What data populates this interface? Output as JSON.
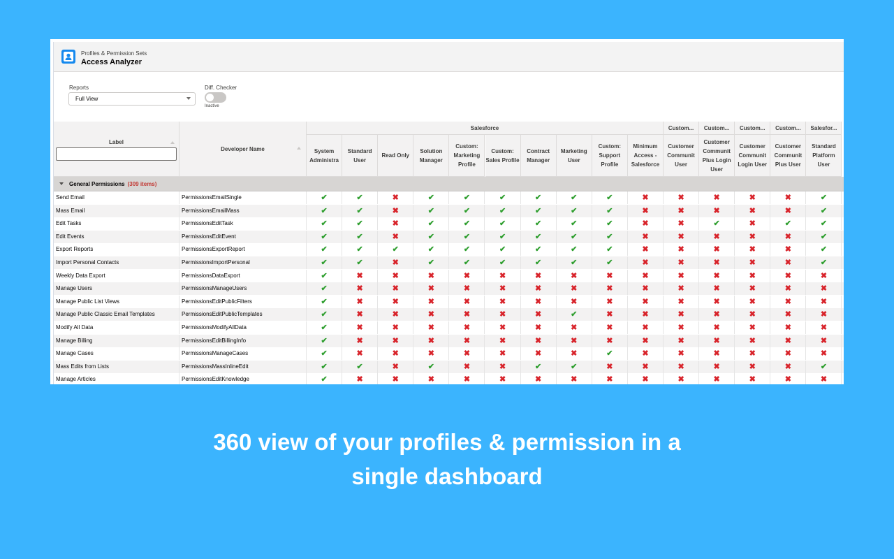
{
  "header": {
    "subtitle": "Profiles & Permission Sets",
    "title": "Access Analyzer"
  },
  "controls": {
    "reports_label": "Reports",
    "reports_value": "Full View",
    "diff_label": "Diff. Checker",
    "diff_state": "Inactive"
  },
  "table": {
    "label_header": "Label",
    "dev_header": "Developer Name",
    "groups": [
      "Salesforce",
      "Custom...",
      "Custom...",
      "Custom...",
      "Custom...",
      "Salesfor..."
    ],
    "columns": [
      "System Administra",
      "Standard User",
      "Read Only",
      "Solution Manager",
      "Custom: Marketing Profile",
      "Custom: Sales Profile",
      "Contract Manager",
      "Marketing User",
      "Custom: Support Profile",
      "Minimum Access - Salesforce",
      "Customer Communit User",
      "Customer Communit Plus Login User",
      "Customer Communit Login User",
      "Customer Communit Plus User",
      "Standard Platform User"
    ],
    "section": {
      "name": "General Permissions",
      "count": "(309 items)"
    },
    "rows": [
      {
        "label": "Send Email",
        "dev": "PermissionsEmailSingle",
        "vals": [
          1,
          1,
          0,
          1,
          1,
          1,
          1,
          1,
          1,
          0,
          0,
          0,
          0,
          0,
          1
        ]
      },
      {
        "label": "Mass Email",
        "dev": "PermissionsEmailMass",
        "vals": [
          1,
          1,
          0,
          1,
          1,
          1,
          1,
          1,
          1,
          0,
          0,
          0,
          0,
          0,
          1
        ]
      },
      {
        "label": "Edit Tasks",
        "dev": "PermissionsEditTask",
        "vals": [
          1,
          1,
          0,
          1,
          1,
          1,
          1,
          1,
          1,
          0,
          0,
          1,
          0,
          1,
          1
        ]
      },
      {
        "label": "Edit Events",
        "dev": "PermissionsEditEvent",
        "vals": [
          1,
          1,
          0,
          1,
          1,
          1,
          1,
          1,
          1,
          0,
          0,
          0,
          0,
          0,
          1
        ]
      },
      {
        "label": "Export Reports",
        "dev": "PermissionsExportReport",
        "vals": [
          1,
          1,
          1,
          1,
          1,
          1,
          1,
          1,
          1,
          0,
          0,
          0,
          0,
          0,
          1
        ]
      },
      {
        "label": "Import Personal Contacts",
        "dev": "PermissionsImportPersonal",
        "vals": [
          1,
          1,
          0,
          1,
          1,
          1,
          1,
          1,
          1,
          0,
          0,
          0,
          0,
          0,
          1
        ]
      },
      {
        "label": "Weekly Data Export",
        "dev": "PermissionsDataExport",
        "vals": [
          1,
          0,
          0,
          0,
          0,
          0,
          0,
          0,
          0,
          0,
          0,
          0,
          0,
          0,
          0
        ]
      },
      {
        "label": "Manage Users",
        "dev": "PermissionsManageUsers",
        "vals": [
          1,
          0,
          0,
          0,
          0,
          0,
          0,
          0,
          0,
          0,
          0,
          0,
          0,
          0,
          0
        ]
      },
      {
        "label": "Manage Public List Views",
        "dev": "PermissionsEditPublicFilters",
        "vals": [
          1,
          0,
          0,
          0,
          0,
          0,
          0,
          0,
          0,
          0,
          0,
          0,
          0,
          0,
          0
        ]
      },
      {
        "label": "Manage Public Classic Email Templates",
        "dev": "PermissionsEditPublicTemplates",
        "vals": [
          1,
          0,
          0,
          0,
          0,
          0,
          0,
          1,
          0,
          0,
          0,
          0,
          0,
          0,
          0
        ]
      },
      {
        "label": "Modify All Data",
        "dev": "PermissionsModifyAllData",
        "vals": [
          1,
          0,
          0,
          0,
          0,
          0,
          0,
          0,
          0,
          0,
          0,
          0,
          0,
          0,
          0
        ]
      },
      {
        "label": "Manage Billing",
        "dev": "PermissionsEditBillingInfo",
        "vals": [
          1,
          0,
          0,
          0,
          0,
          0,
          0,
          0,
          0,
          0,
          0,
          0,
          0,
          0,
          0
        ]
      },
      {
        "label": "Manage Cases",
        "dev": "PermissionsManageCases",
        "vals": [
          1,
          0,
          0,
          0,
          0,
          0,
          0,
          0,
          1,
          0,
          0,
          0,
          0,
          0,
          0
        ]
      },
      {
        "label": "Mass Edits from Lists",
        "dev": "PermissionsMassInlineEdit",
        "vals": [
          1,
          1,
          0,
          1,
          0,
          0,
          1,
          1,
          0,
          0,
          0,
          0,
          0,
          0,
          1
        ]
      },
      {
        "label": "Manage Articles",
        "dev": "PermissionsEditKnowledge",
        "vals": [
          1,
          0,
          0,
          0,
          0,
          0,
          0,
          0,
          0,
          0,
          0,
          0,
          0,
          0,
          0
        ]
      }
    ],
    "check_glyph": "✔",
    "cross_glyph": "✖"
  },
  "tagline": {
    "line1": "360 view of your profiles & permission in a",
    "line2": "single dashboard"
  },
  "colors": {
    "background": "#3bb4fe",
    "check": "#2e9e2e",
    "cross": "#d8232a",
    "count_red": "#c23934",
    "icon_blue": "#1589ee"
  }
}
